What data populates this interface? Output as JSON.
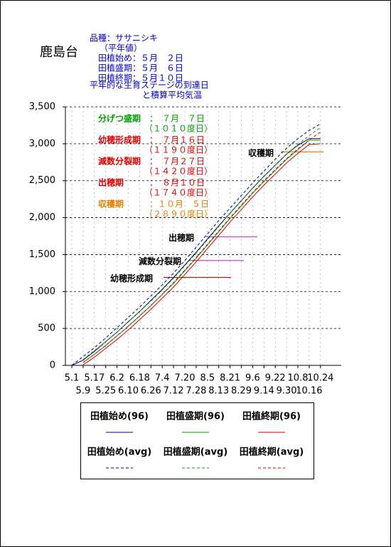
{
  "chart_data": {
    "type": "line",
    "station": "鹿島台",
    "info": [
      "品種：ササニシキ",
      "（平年値）",
      "田植始め：５月　２日",
      "田植盛期：５月　６日",
      "田植終期：５月１０日"
    ],
    "title": "平年的な生育ステージの到達日",
    "subtitle": "と積算平均気温",
    "stages": [
      {
        "name": "分げつ盛期",
        "date": "：　７月　７日",
        "gdd": "（１０１０度日）",
        "color": "#00a000"
      },
      {
        "name": "幼穂形成期",
        "date": "：　７月１６日",
        "gdd": "（１１９０度日）",
        "color": "#e00000"
      },
      {
        "name": "減数分裂期",
        "date": "：　７月２７日",
        "gdd": "（１４２０度日）",
        "color": "#e00000"
      },
      {
        "name": "出穂期",
        "date": "：　８月１０日",
        "gdd": "（１７４０度日）",
        "color": "#e00000"
      },
      {
        "name": "収穫期",
        "date": "：１０月　５日",
        "gdd": "（２８９０度日）",
        "color": "#e08000"
      }
    ],
    "markers": [
      {
        "label": "幼穂形成期",
        "value": 1190,
        "color": "#e00000"
      },
      {
        "label": "減数分裂期",
        "value": 1420,
        "color": "#cc44cc"
      },
      {
        "label": "出穂期",
        "value": 1740,
        "color": "#cc44cc"
      },
      {
        "label": "収穫期",
        "value": 2890,
        "color": "#e08000"
      }
    ],
    "categories": [
      "5.1",
      "5.9",
      "5.17",
      "5.25",
      "6.2",
      "6.10",
      "6.18",
      "6.26",
      "7.4",
      "7.12",
      "7.20",
      "7.28",
      "8.5",
      "8.13",
      "8.21",
      "8.29",
      "9.6",
      "9.14",
      "9.22",
      "9.30",
      "10.8",
      "10.16",
      "10.24"
    ],
    "series": [
      {
        "name": "田植始め(96)",
        "color": "#000080",
        "dash": false,
        "values": [
          0,
          70,
          190,
          320,
          450,
          590,
          730,
          880,
          1030,
          1190,
          1360,
          1530,
          1710,
          1890,
          2060,
          2230,
          2400,
          2560,
          2710,
          2860,
          2980,
          3070,
          3070
        ]
      },
      {
        "name": "田植盛期(96)",
        "color": "#00a000",
        "dash": false,
        "values": [
          null,
          40,
          150,
          270,
          400,
          530,
          670,
          810,
          960,
          1110,
          1280,
          1450,
          1630,
          1810,
          1990,
          2160,
          2330,
          2490,
          2640,
          2790,
          2920,
          3050,
          3050
        ]
      },
      {
        "name": "田植終期(96)",
        "color": "#e00000",
        "dash": false,
        "values": [
          null,
          10,
          110,
          230,
          350,
          480,
          620,
          760,
          910,
          1060,
          1230,
          1400,
          1580,
          1760,
          1940,
          2110,
          2280,
          2440,
          2590,
          2740,
          2870,
          2990,
          3000
        ]
      },
      {
        "name": "田植始め(avg)",
        "color": "#000080",
        "dash": true,
        "values": [
          0,
          120,
          240,
          370,
          510,
          650,
          790,
          940,
          1090,
          1250,
          1420,
          1600,
          1780,
          1960,
          2130,
          2300,
          2470,
          2630,
          2790,
          2940,
          3070,
          3180,
          3270
        ]
      },
      {
        "name": "田植盛期(avg)",
        "color": "#00a000",
        "dash": true,
        "values": [
          null,
          80,
          200,
          320,
          450,
          590,
          730,
          870,
          1020,
          1180,
          1350,
          1520,
          1700,
          1880,
          2060,
          2230,
          2400,
          2560,
          2710,
          2860,
          2990,
          3110,
          3220
        ]
      },
      {
        "name": "田植終期(avg)",
        "color": "#e00000",
        "dash": true,
        "values": [
          null,
          40,
          150,
          270,
          400,
          530,
          670,
          810,
          960,
          1120,
          1290,
          1460,
          1640,
          1820,
          2000,
          2170,
          2340,
          2500,
          2650,
          2800,
          2930,
          3050,
          3160
        ]
      }
    ],
    "ylim": [
      0,
      3500
    ],
    "yticks": [
      0,
      500,
      {
        "value": 1000,
        "label": "1,000"
      },
      {
        "value": 1500,
        "label": "1,500"
      },
      {
        "value": 2000,
        "label": "2,000"
      },
      {
        "value": 2500,
        "label": "2,500"
      },
      {
        "value": 3000,
        "label": "3,000"
      },
      {
        "value": 3500,
        "label": "3,500"
      }
    ],
    "grid": true
  }
}
